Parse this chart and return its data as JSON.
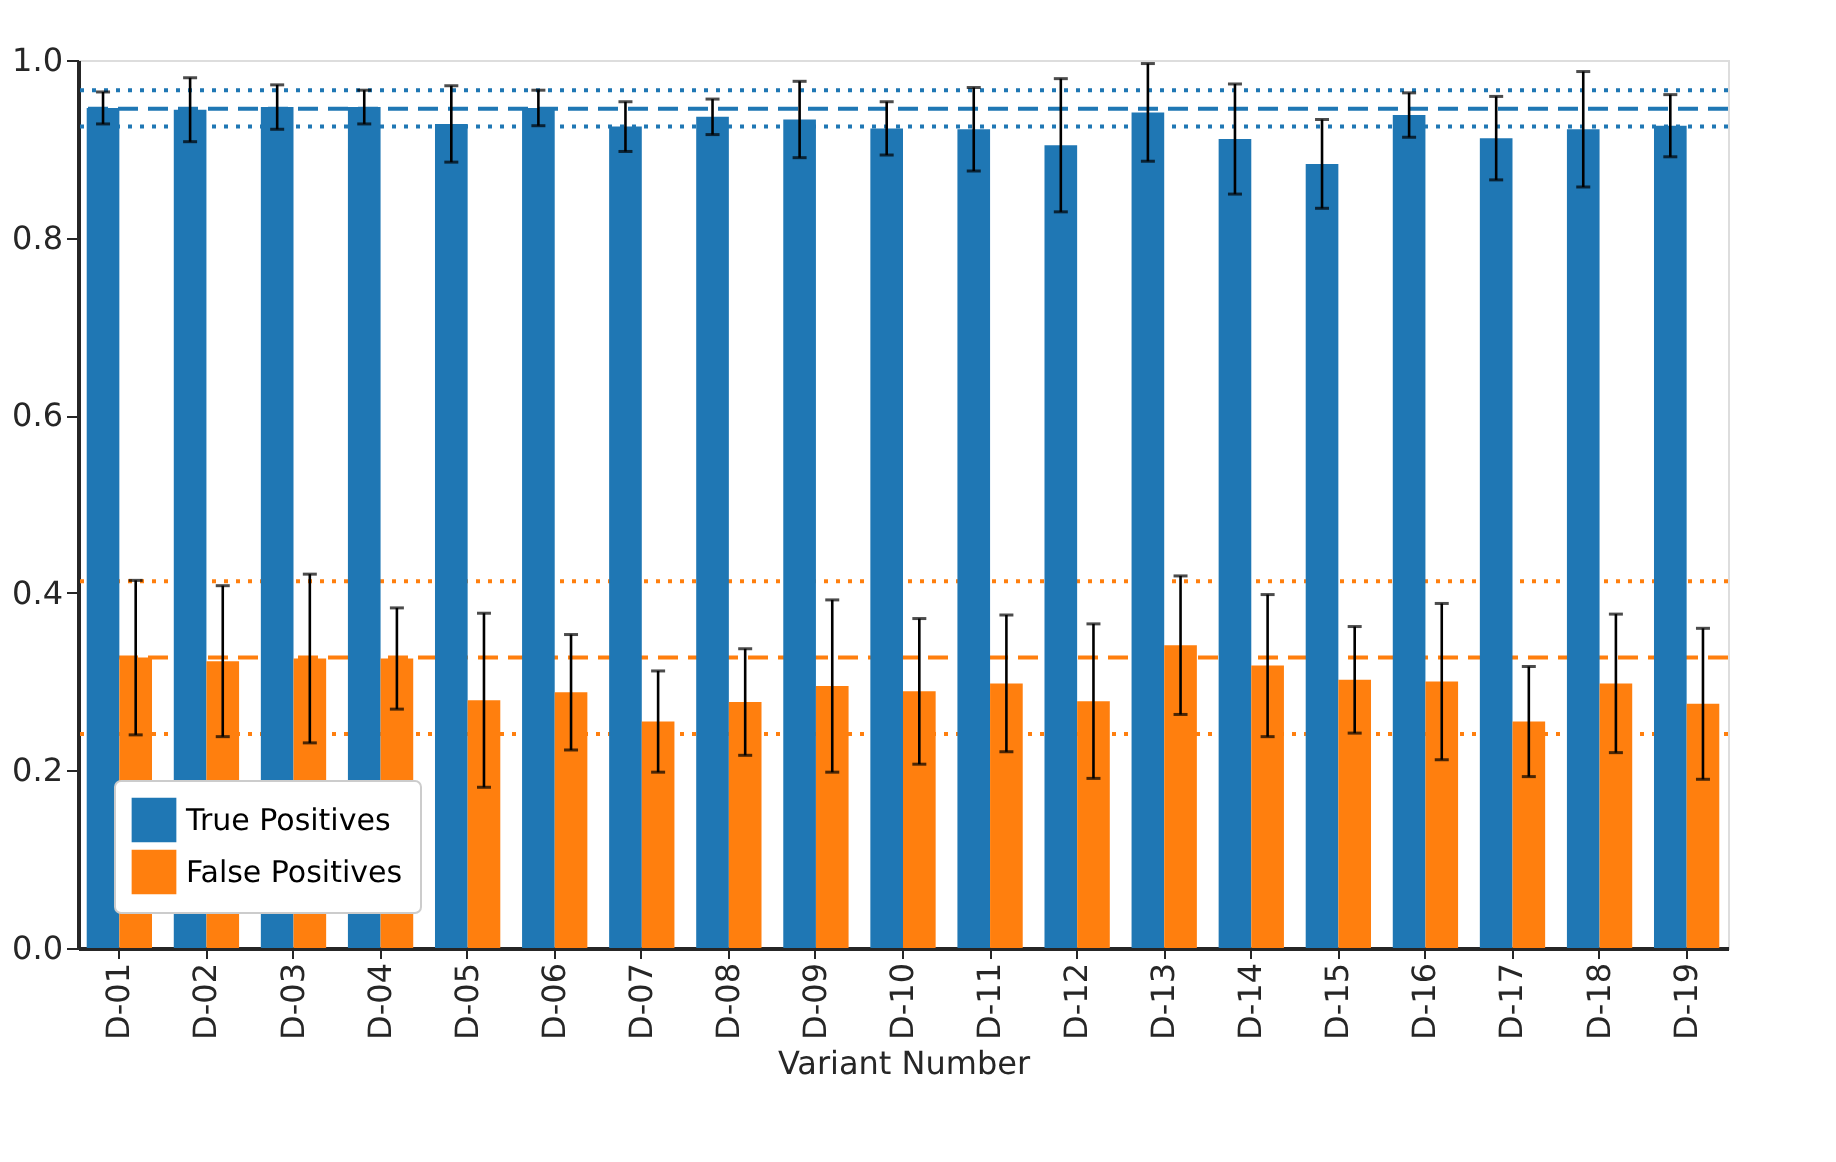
{
  "chart_data": {
    "type": "bar",
    "xlabel": "Variant Number",
    "categories": [
      "D-01",
      "D-02",
      "D-03",
      "D-04",
      "D-05",
      "D-06",
      "D-07",
      "D-08",
      "D-09",
      "D-10",
      "D-11",
      "D-12",
      "D-13",
      "D-14",
      "D-15",
      "D-16",
      "D-17",
      "D-18",
      "D-19"
    ],
    "series": [
      {
        "name": "True Positives",
        "color": "#1f77b4",
        "values": [
          0.946,
          0.944,
          0.947,
          0.947,
          0.928,
          0.946,
          0.925,
          0.936,
          0.933,
          0.923,
          0.922,
          0.904,
          0.941,
          0.911,
          0.883,
          0.938,
          0.912,
          0.922,
          0.926
        ],
        "errors": [
          0.018,
          0.036,
          0.025,
          0.019,
          0.043,
          0.02,
          0.028,
          0.02,
          0.043,
          0.03,
          0.047,
          0.075,
          0.055,
          0.062,
          0.05,
          0.025,
          0.047,
          0.065,
          0.035
        ]
      },
      {
        "name": "False Positives",
        "color": "#ff7f0e",
        "values": [
          0.327,
          0.323,
          0.326,
          0.326,
          0.279,
          0.288,
          0.255,
          0.277,
          0.295,
          0.289,
          0.298,
          0.278,
          0.341,
          0.318,
          0.302,
          0.3,
          0.255,
          0.298,
          0.275
        ],
        "errors": [
          0.087,
          0.085,
          0.095,
          0.057,
          0.098,
          0.065,
          0.057,
          0.06,
          0.097,
          0.082,
          0.077,
          0.087,
          0.078,
          0.08,
          0.06,
          0.088,
          0.062,
          0.078,
          0.085
        ]
      }
    ],
    "ylim": [
      0,
      1.0
    ],
    "yticks": [
      {
        "value": 0,
        "label": "0.0"
      },
      {
        "value": 0.2,
        "label": "0.2"
      },
      {
        "value": 0.4,
        "label": "0.4"
      },
      {
        "value": 0.6,
        "label": "0.6"
      },
      {
        "value": 0.8,
        "label": "0.8"
      },
      {
        "value": 1.0,
        "label": "1.0"
      }
    ],
    "ref_lines": [
      {
        "axis": "y",
        "value": 0.945,
        "color": "#1f77b4",
        "line_style": "dashed"
      },
      {
        "axis": "y",
        "value": 0.966,
        "color": "#1f77b4",
        "line_style": "dotted"
      },
      {
        "axis": "y",
        "value": 0.925,
        "color": "#1f77b4",
        "line_style": "dotted"
      },
      {
        "axis": "y",
        "value": 0.327,
        "color": "#ff7f0e",
        "line_style": "dashed"
      },
      {
        "axis": "y",
        "value": 0.413,
        "color": "#ff7f0e",
        "line_style": "dotted"
      },
      {
        "axis": "y",
        "value": 0.241,
        "color": "#ff7f0e",
        "line_style": "dotted"
      }
    ],
    "legend": "bottom left",
    "grid": false
  }
}
